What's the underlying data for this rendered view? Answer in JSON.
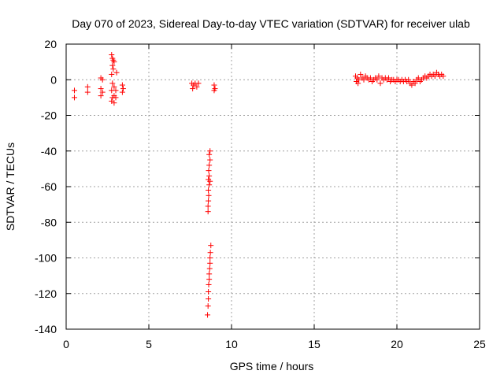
{
  "chart_data": {
    "type": "scatter",
    "title": "Day 070 of 2023, Sidereal Day-to-day VTEC variation (SDTVAR) for receiver ulab",
    "xlabel": "GPS time / hours",
    "ylabel": "SDTVAR / TECUs",
    "xlim": [
      0,
      25
    ],
    "ylim": [
      -140,
      20
    ],
    "xticks": [
      0,
      5,
      10,
      15,
      20,
      25
    ],
    "yticks": [
      20,
      0,
      -20,
      -40,
      -60,
      -80,
      -100,
      -120,
      -140
    ],
    "xtick_labels": [
      "0",
      "5",
      "10",
      "15",
      "20",
      "25"
    ],
    "ytick_labels": [
      "20",
      "0",
      "-20",
      "-40",
      "-60",
      "-80",
      "-100",
      "-120",
      "-140"
    ],
    "grid": true,
    "marker": "+",
    "color": "#ff0000",
    "series": [
      {
        "name": "SDTVAR",
        "points": [
          [
            0.5,
            -6
          ],
          [
            0.5,
            -10
          ],
          [
            1.3,
            -4
          ],
          [
            1.3,
            -7
          ],
          [
            2.1,
            1
          ],
          [
            2.2,
            0
          ],
          [
            2.1,
            -5
          ],
          [
            2.2,
            -7
          ],
          [
            2.1,
            -9
          ],
          [
            2.75,
            14
          ],
          [
            2.8,
            12
          ],
          [
            2.85,
            11
          ],
          [
            2.9,
            10
          ],
          [
            2.8,
            8
          ],
          [
            2.85,
            6
          ],
          [
            2.75,
            3
          ],
          [
            3.05,
            4
          ],
          [
            2.8,
            -2
          ],
          [
            2.9,
            -4
          ],
          [
            2.75,
            -6
          ],
          [
            3.0,
            -6
          ],
          [
            2.9,
            -9
          ],
          [
            2.8,
            -10
          ],
          [
            3.0,
            -10
          ],
          [
            2.75,
            -12
          ],
          [
            2.9,
            -13
          ],
          [
            3.4,
            -3
          ],
          [
            3.45,
            -5
          ],
          [
            3.4,
            -7
          ],
          [
            7.6,
            -2
          ],
          [
            7.7,
            -3
          ],
          [
            7.8,
            -2
          ],
          [
            7.9,
            -4
          ],
          [
            8.0,
            -2
          ],
          [
            7.65,
            -5
          ],
          [
            8.95,
            -3
          ],
          [
            9.0,
            -5
          ],
          [
            8.95,
            -6
          ],
          [
            8.7,
            -40
          ],
          [
            8.65,
            -42
          ],
          [
            8.7,
            -45
          ],
          [
            8.65,
            -48
          ],
          [
            8.62,
            -51
          ],
          [
            8.65,
            -54
          ],
          [
            8.6,
            -56
          ],
          [
            8.7,
            -57
          ],
          [
            8.65,
            -59
          ],
          [
            8.6,
            -62
          ],
          [
            8.62,
            -65
          ],
          [
            8.6,
            -68
          ],
          [
            8.58,
            -71
          ],
          [
            8.58,
            -74
          ],
          [
            8.75,
            -93
          ],
          [
            8.72,
            -97
          ],
          [
            8.7,
            -100
          ],
          [
            8.7,
            -103
          ],
          [
            8.68,
            -106
          ],
          [
            8.65,
            -109
          ],
          [
            8.65,
            -112
          ],
          [
            8.62,
            -115
          ],
          [
            8.6,
            -119
          ],
          [
            8.6,
            -123
          ],
          [
            8.58,
            -127
          ],
          [
            8.55,
            -132
          ],
          [
            17.5,
            2
          ],
          [
            17.6,
            1
          ],
          [
            17.7,
            0
          ],
          [
            17.55,
            -1
          ],
          [
            17.65,
            -2
          ],
          [
            17.8,
            3
          ],
          [
            17.9,
            1
          ],
          [
            18.0,
            0
          ],
          [
            18.1,
            2
          ],
          [
            18.2,
            1
          ],
          [
            18.3,
            0
          ],
          [
            18.4,
            1
          ],
          [
            18.5,
            -1
          ],
          [
            18.6,
            0
          ],
          [
            18.7,
            1
          ],
          [
            18.8,
            0
          ],
          [
            18.9,
            2
          ],
          [
            19.0,
            -2
          ],
          [
            19.1,
            1
          ],
          [
            19.2,
            0
          ],
          [
            19.3,
            1
          ],
          [
            19.4,
            0
          ],
          [
            19.5,
            1
          ],
          [
            19.6,
            -1
          ],
          [
            19.7,
            0
          ],
          [
            19.8,
            0
          ],
          [
            19.9,
            -1
          ],
          [
            20.0,
            0
          ],
          [
            20.1,
            0
          ],
          [
            20.2,
            -1
          ],
          [
            20.3,
            0
          ],
          [
            20.4,
            -1
          ],
          [
            20.5,
            0
          ],
          [
            20.6,
            -1
          ],
          [
            20.7,
            0
          ],
          [
            20.8,
            -2
          ],
          [
            20.9,
            -3
          ],
          [
            21.0,
            -1
          ],
          [
            21.1,
            -2
          ],
          [
            21.2,
            0
          ],
          [
            21.3,
            1
          ],
          [
            21.4,
            -1
          ],
          [
            21.5,
            0
          ],
          [
            21.6,
            1
          ],
          [
            21.7,
            2
          ],
          [
            21.8,
            1
          ],
          [
            21.9,
            2
          ],
          [
            22.0,
            3
          ],
          [
            22.1,
            2
          ],
          [
            22.2,
            3
          ],
          [
            22.3,
            2
          ],
          [
            22.4,
            4
          ],
          [
            22.5,
            3
          ],
          [
            22.6,
            2
          ],
          [
            22.7,
            3
          ],
          [
            22.8,
            2
          ]
        ]
      }
    ]
  }
}
